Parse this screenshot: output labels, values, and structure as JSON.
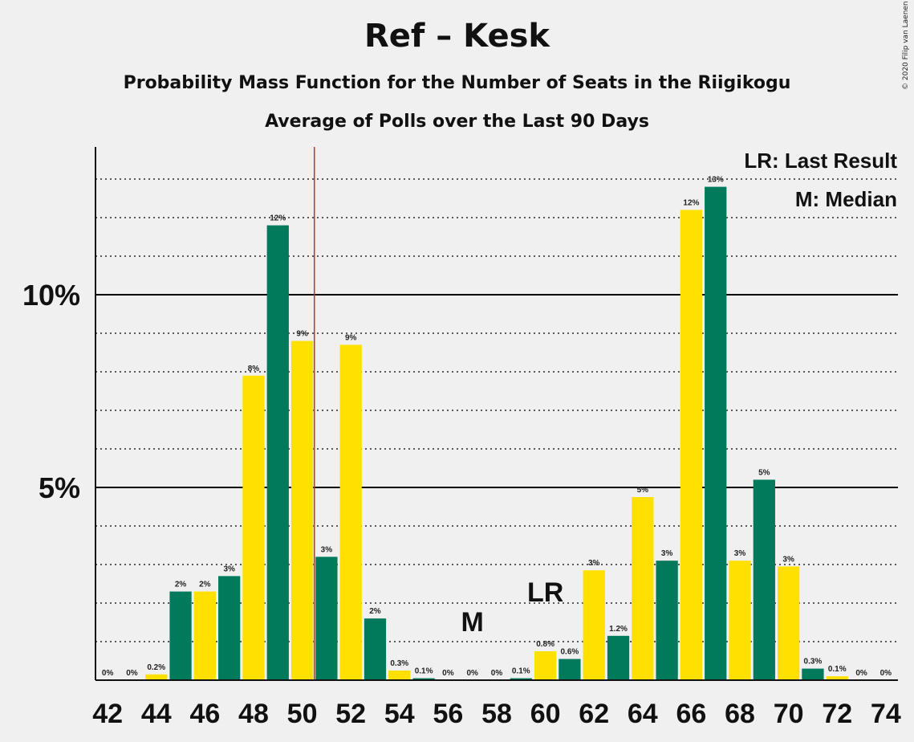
{
  "title": "Ref – Kesk",
  "subtitle": "Probability Mass Function for the Number of Seats in the Riigikogu",
  "subtitle2": "Average of Polls over the Last 90 Days",
  "copyright": "© 2020 Filip van Laenen",
  "legend": {
    "last_result": "LR: Last Result",
    "median": "M: Median"
  },
  "colors": {
    "green": "#007a5a",
    "yellow": "#ffe000",
    "last_result_line": "#cc3300",
    "grid": "#000000",
    "background": "#f0f0f0"
  },
  "chart_data": {
    "type": "bar",
    "x": [
      42,
      43,
      44,
      45,
      46,
      47,
      48,
      49,
      50,
      51,
      52,
      53,
      54,
      55,
      56,
      57,
      58,
      59,
      60,
      61,
      62,
      63,
      64,
      65,
      66,
      67,
      68,
      69,
      70,
      71,
      72,
      73,
      74
    ],
    "values": [
      0,
      0,
      0.15,
      2.3,
      2.3,
      2.7,
      7.9,
      11.8,
      8.8,
      3.2,
      8.7,
      1.6,
      0.25,
      0.05,
      0,
      0,
      0,
      0.05,
      0.75,
      0.55,
      2.85,
      1.15,
      4.75,
      3.1,
      12.2,
      12.8,
      3.1,
      5.2,
      2.95,
      0.3,
      0.1,
      0,
      0
    ],
    "labels": [
      "0%",
      "0%",
      "0.2%",
      "2%",
      "2%",
      "3%",
      "8%",
      "12%",
      "9%",
      "3%",
      "9%",
      "2%",
      "0.3%",
      "0.1%",
      "0%",
      "0%",
      "0%",
      "0.1%",
      "0.8%",
      "0.6%",
      "3%",
      "1.2%",
      "5%",
      "3%",
      "12%",
      "13%",
      "3%",
      "5%",
      "3%",
      "0.3%",
      "0.1%",
      "0%",
      "0%"
    ],
    "colors": [
      "green",
      "green",
      "yellow",
      "green",
      "yellow",
      "green",
      "yellow",
      "green",
      "yellow",
      "green",
      "yellow",
      "green",
      "yellow",
      "green",
      "yellow",
      "green",
      "yellow",
      "green",
      "yellow",
      "green",
      "yellow",
      "green",
      "yellow",
      "green",
      "yellow",
      "green",
      "yellow",
      "green",
      "yellow",
      "green",
      "yellow",
      "green",
      "yellow"
    ],
    "x_ticks": [
      42,
      44,
      46,
      48,
      50,
      52,
      54,
      56,
      58,
      60,
      62,
      64,
      66,
      68,
      70,
      72,
      74
    ],
    "y_ticks": [
      5,
      10
    ],
    "y_tick_labels": [
      "5%",
      "10%"
    ],
    "ylim": [
      0,
      14
    ],
    "minor_grid_step": 1,
    "last_result": 50.5,
    "last_result_label": "LR",
    "last_result_label_at": 60,
    "median": 57,
    "median_label": "M"
  }
}
